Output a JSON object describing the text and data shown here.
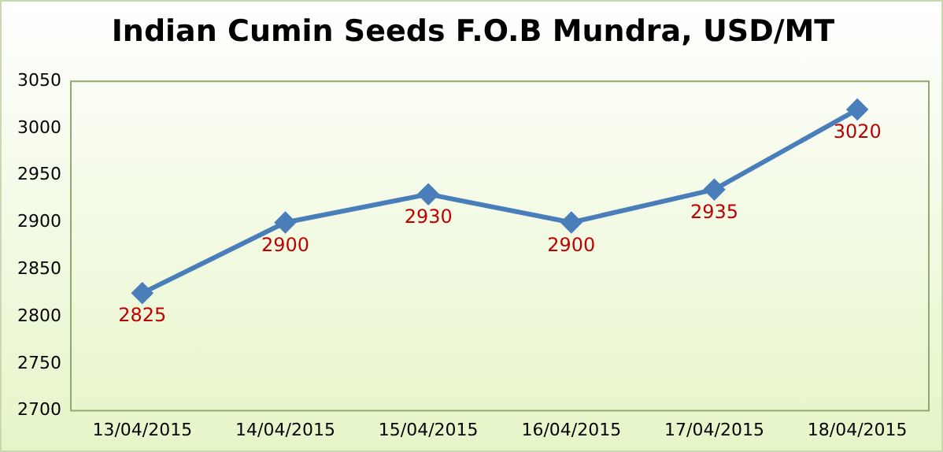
{
  "chart_data": {
    "type": "line",
    "title": "Indian Cumin Seeds F.O.B Mundra, USD/MT",
    "categories": [
      "13/04/2015",
      "14/04/2015",
      "15/04/2015",
      "16/04/2015",
      "17/04/2015",
      "18/04/2015"
    ],
    "series": [
      {
        "color": "#4a7ebb",
        "values": [
          2825,
          2900,
          2930,
          2900,
          2935,
          3020
        ]
      }
    ],
    "ylim": [
      2700,
      3050
    ],
    "yticks": [
      2700,
      2750,
      2800,
      2850,
      2900,
      2950,
      3000,
      3050
    ],
    "grid": false,
    "legend": false,
    "marker": "diamond",
    "line_style": "solid",
    "data_labels": true
  }
}
